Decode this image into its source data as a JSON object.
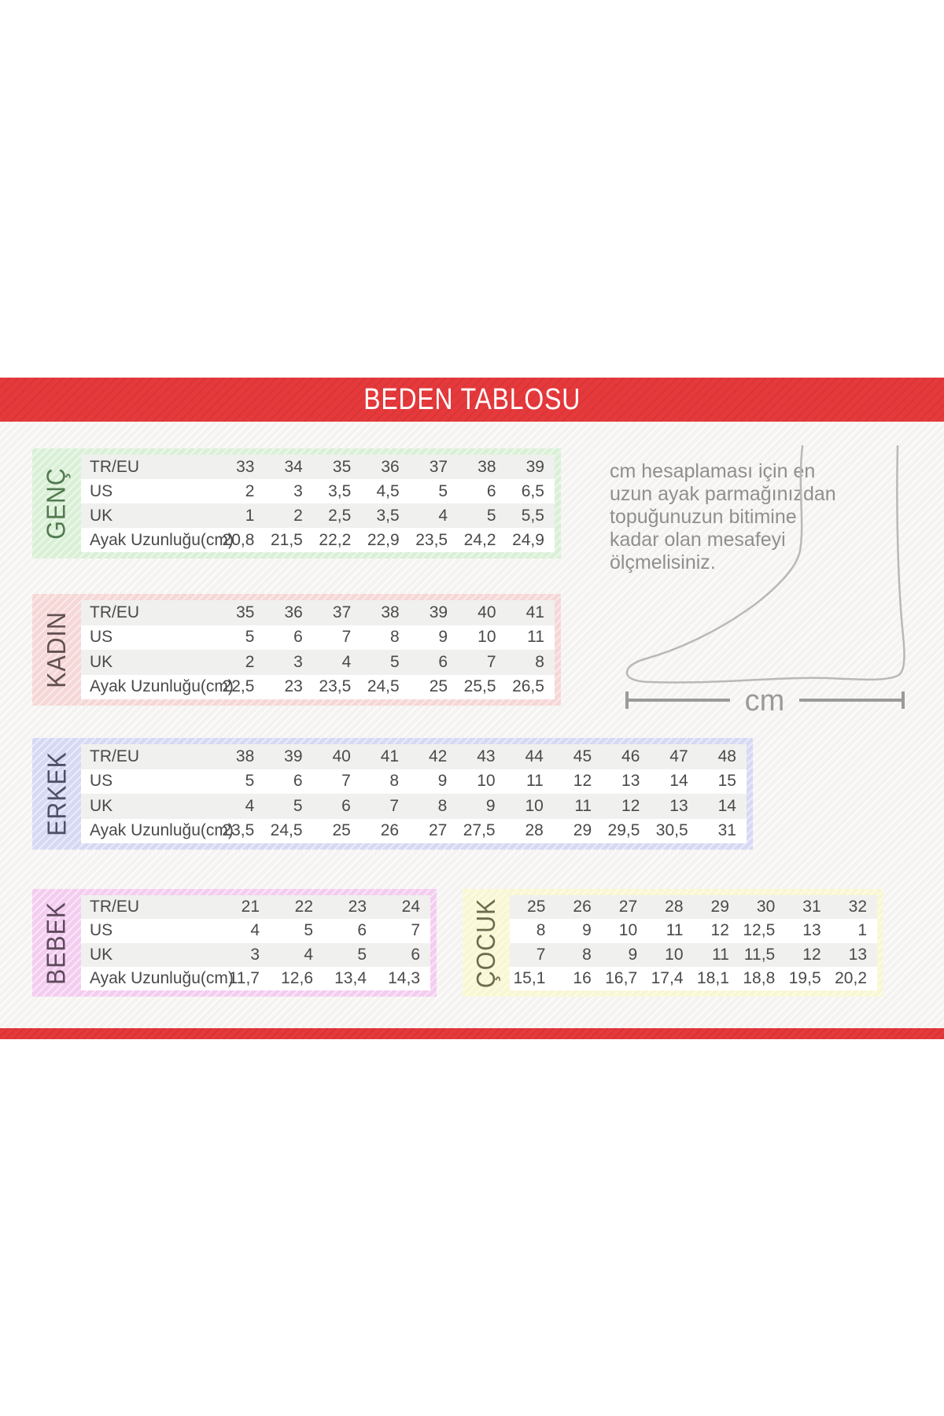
{
  "banner": {
    "title": "BEDEN TABLOSU",
    "color": "#e6393c"
  },
  "instruction": {
    "lines": [
      "cm hesaplaması için en",
      "uzun ayak parmağınızdan",
      "topuğunuzun bitimine",
      "kadar olan mesafeyi",
      "ölçmelisiniz."
    ]
  },
  "measure": {
    "unit_label": "cm"
  },
  "size_tables": [
    {
      "id": "genc",
      "label": "GENÇ",
      "frame_color": "#d9f0d6",
      "label_color": "#527a50",
      "row_headers": [
        "TR/EU",
        "US",
        "UK",
        "Ayak Uzunluğu(cm)"
      ],
      "rows": [
        [
          "33",
          "34",
          "35",
          "36",
          "37",
          "38",
          "39"
        ],
        [
          "2",
          "3",
          "3,5",
          "4,5",
          "5",
          "6",
          "6,5"
        ],
        [
          "1",
          "2",
          "2,5",
          "3,5",
          "4",
          "5",
          "5,5"
        ],
        [
          "20,8",
          "21,5",
          "22,2",
          "22,9",
          "23,5",
          "24,2",
          "24,9"
        ]
      ]
    },
    {
      "id": "kadin",
      "label": "KADIN",
      "frame_color": "#f6d6d6",
      "label_color": "#635052",
      "row_headers": [
        "TR/EU",
        "US",
        "UK",
        "Ayak Uzunluğu(cm)"
      ],
      "rows": [
        [
          "35",
          "36",
          "37",
          "38",
          "39",
          "40",
          "41"
        ],
        [
          "5",
          "6",
          "7",
          "8",
          "9",
          "10",
          "11"
        ],
        [
          "2",
          "3",
          "4",
          "5",
          "6",
          "7",
          "8"
        ],
        [
          "22,5",
          "23",
          "23,5",
          "24,5",
          "25",
          "25,5",
          "26,5"
        ]
      ]
    },
    {
      "id": "erkek",
      "label": "ERKEK",
      "frame_color": "#d6d8f4",
      "label_color": "#4e5068",
      "row_headers": [
        "TR/EU",
        "US",
        "UK",
        "Ayak Uzunluğu(cm)"
      ],
      "rows": [
        [
          "38",
          "39",
          "40",
          "41",
          "42",
          "43",
          "44",
          "45",
          "46",
          "47",
          "48"
        ],
        [
          "5",
          "6",
          "7",
          "8",
          "9",
          "10",
          "11",
          "12",
          "13",
          "14",
          "15"
        ],
        [
          "4",
          "5",
          "6",
          "7",
          "8",
          "9",
          "10",
          "11",
          "12",
          "13",
          "14"
        ],
        [
          "23,5",
          "24,5",
          "25",
          "26",
          "27",
          "27,5",
          "28",
          "29",
          "29,5",
          "30,5",
          "31"
        ]
      ]
    },
    {
      "id": "bebek",
      "label": "BEBEK",
      "frame_color": "#f4ccf0",
      "label_color": "#5f4a5e",
      "row_headers": [
        "TR/EU",
        "US",
        "UK",
        "Ayak Uzunluğu(cm)"
      ],
      "rows": [
        [
          "21",
          "22",
          "23",
          "24"
        ],
        [
          "4",
          "5",
          "6",
          "7"
        ],
        [
          "3",
          "4",
          "5",
          "6"
        ],
        [
          "11,7",
          "12,6",
          "13,4",
          "14,3"
        ]
      ]
    },
    {
      "id": "cocuk",
      "label": "ÇOCUK",
      "frame_color": "#f8f7d2",
      "label_color": "#6e6c4c",
      "row_headers": null,
      "rows": [
        [
          "25",
          "26",
          "27",
          "28",
          "29",
          "30",
          "31",
          "32"
        ],
        [
          "8",
          "9",
          "10",
          "11",
          "12",
          "12,5",
          "13",
          "1"
        ],
        [
          "7",
          "8",
          "9",
          "10",
          "11",
          "11,5",
          "12",
          "13"
        ],
        [
          "15,1",
          "16",
          "16,7",
          "17,4",
          "18,1",
          "18,8",
          "19,5",
          "20,2"
        ]
      ]
    }
  ]
}
